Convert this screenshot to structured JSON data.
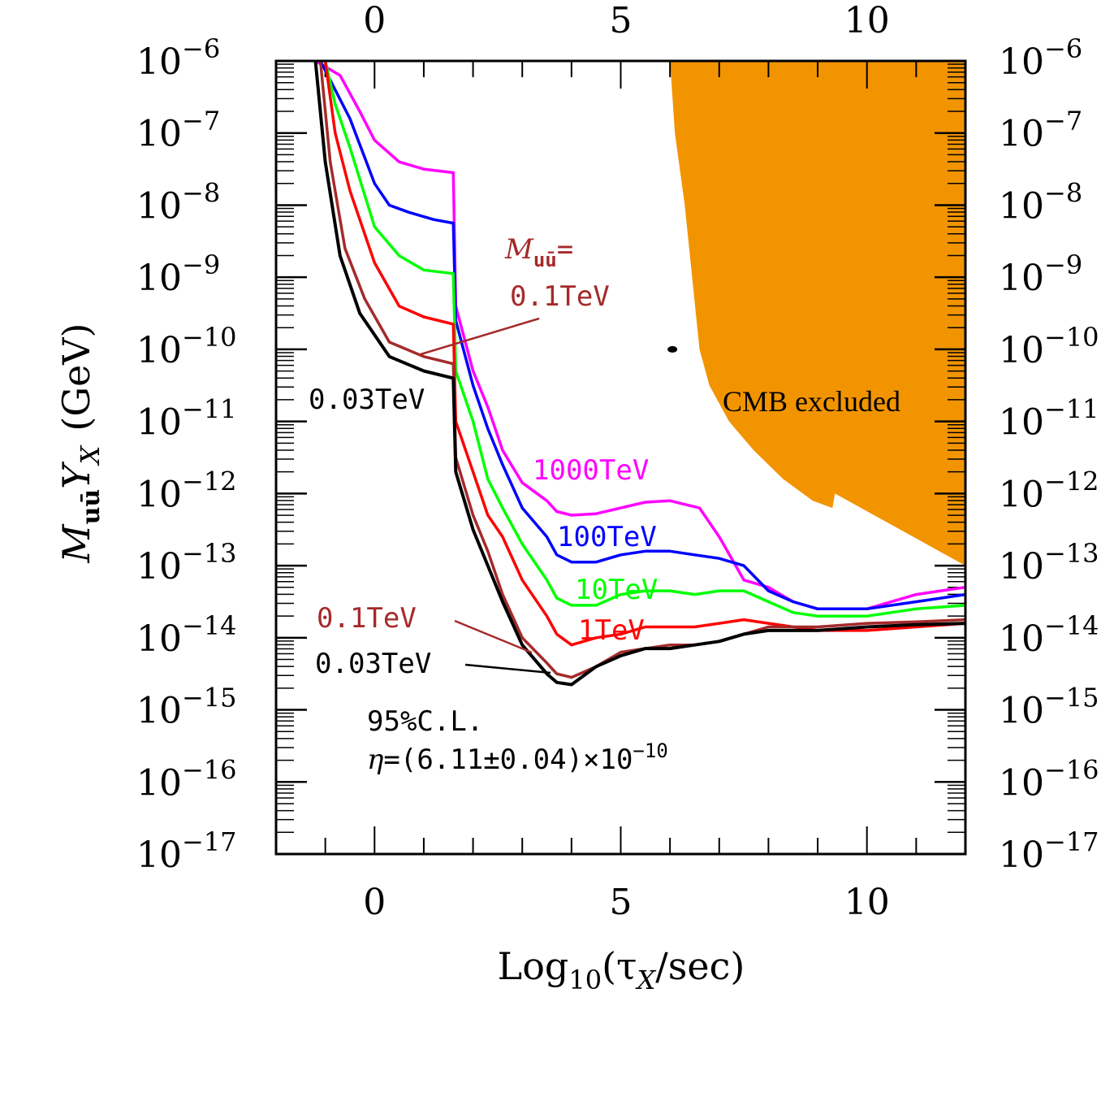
{
  "chart_data": {
    "type": "line",
    "xlabel": "Log10(τX/sec)",
    "xlabel_parts": {
      "pre": "Log",
      "sub": "10",
      "mid": "(τ",
      "mid_sub": "X",
      "post": "/sec)"
    },
    "ylabel": "M_uū Y_X (GeV)",
    "ylabel_parts": {
      "m": "M",
      "m_sub": "uū",
      "y": "Y",
      "y_sub": "X",
      "unit": "(GeV)"
    },
    "xlim": [
      -2,
      12
    ],
    "ylim_log10": [
      -17,
      -6
    ],
    "x_ticks": [
      {
        "v": 0,
        "label": "0"
      },
      {
        "v": 5,
        "label": "5"
      },
      {
        "v": 10,
        "label": "10"
      }
    ],
    "y_ticks": [
      {
        "v": -6,
        "base": "10",
        "exp": "−6"
      },
      {
        "v": -7,
        "base": "10",
        "exp": "−7"
      },
      {
        "v": -8,
        "base": "10",
        "exp": "−8"
      },
      {
        "v": -9,
        "base": "10",
        "exp": "−9"
      },
      {
        "v": -10,
        "base": "10",
        "exp": "−10"
      },
      {
        "v": -11,
        "base": "10",
        "exp": "−11"
      },
      {
        "v": -12,
        "base": "10",
        "exp": "−12"
      },
      {
        "v": -13,
        "base": "10",
        "exp": "−13"
      },
      {
        "v": -14,
        "base": "10",
        "exp": "−14"
      },
      {
        "v": -15,
        "base": "10",
        "exp": "−15"
      },
      {
        "v": -16,
        "base": "10",
        "exp": "−16"
      },
      {
        "v": -17,
        "base": "10",
        "exp": "−17"
      }
    ],
    "series": [
      {
        "name": "1000TeV",
        "color": "#ff00ff",
        "points": [
          [
            -1.2,
            -6
          ],
          [
            -0.7,
            -6.2
          ],
          [
            -0.3,
            -6.7
          ],
          [
            0,
            -7.1
          ],
          [
            0.5,
            -7.4
          ],
          [
            1,
            -7.5
          ],
          [
            1.6,
            -7.55
          ],
          [
            1.65,
            -9.4
          ],
          [
            2,
            -10.3
          ],
          [
            2.3,
            -10.8
          ],
          [
            2.6,
            -11.4
          ],
          [
            3,
            -11.85
          ],
          [
            3.5,
            -12.1
          ],
          [
            3.7,
            -12.25
          ],
          [
            4,
            -12.3
          ],
          [
            4.5,
            -12.28
          ],
          [
            5,
            -12.2
          ],
          [
            5.5,
            -12.12
          ],
          [
            6,
            -12.1
          ],
          [
            6.3,
            -12.15
          ],
          [
            6.6,
            -12.2
          ],
          [
            6.7,
            -12.3
          ],
          [
            7,
            -12.6
          ],
          [
            7.5,
            -13.2
          ],
          [
            8,
            -13.3
          ],
          [
            8.5,
            -13.5
          ],
          [
            9,
            -13.6
          ],
          [
            10,
            -13.6
          ],
          [
            11,
            -13.4
          ],
          [
            12,
            -13.3
          ]
        ]
      },
      {
        "name": "100TeV",
        "color": "#0000ff",
        "points": [
          [
            -1.1,
            -6
          ],
          [
            -0.8,
            -6.4
          ],
          [
            -0.5,
            -6.8
          ],
          [
            0,
            -7.7
          ],
          [
            0.3,
            -8
          ],
          [
            0.7,
            -8.1
          ],
          [
            1.2,
            -8.2
          ],
          [
            1.6,
            -8.25
          ],
          [
            1.65,
            -9.6
          ],
          [
            2,
            -10.5
          ],
          [
            2.3,
            -11.1
          ],
          [
            2.6,
            -11.6
          ],
          [
            3,
            -12.2
          ],
          [
            3.5,
            -12.6
          ],
          [
            3.7,
            -12.85
          ],
          [
            4,
            -12.95
          ],
          [
            4.5,
            -12.95
          ],
          [
            5,
            -12.85
          ],
          [
            5.5,
            -12.8
          ],
          [
            6,
            -12.8
          ],
          [
            6.5,
            -12.85
          ],
          [
            7,
            -12.9
          ],
          [
            7.5,
            -13
          ],
          [
            8,
            -13.35
          ],
          [
            8.5,
            -13.5
          ],
          [
            9,
            -13.6
          ],
          [
            10,
            -13.6
          ],
          [
            11,
            -13.5
          ],
          [
            12,
            -13.4
          ]
        ]
      },
      {
        "name": "10TeV",
        "color": "#00ff00",
        "points": [
          [
            -1,
            -6
          ],
          [
            -0.8,
            -6.6
          ],
          [
            -0.5,
            -7.2
          ],
          [
            0,
            -8.3
          ],
          [
            0.5,
            -8.7
          ],
          [
            1,
            -8.9
          ],
          [
            1.6,
            -8.95
          ],
          [
            1.65,
            -10.3
          ],
          [
            2,
            -11
          ],
          [
            2.3,
            -11.8
          ],
          [
            2.6,
            -12.2
          ],
          [
            3,
            -12.7
          ],
          [
            3.5,
            -13.2
          ],
          [
            3.7,
            -13.45
          ],
          [
            4,
            -13.55
          ],
          [
            4.5,
            -13.55
          ],
          [
            5,
            -13.4
          ],
          [
            5.5,
            -13.35
          ],
          [
            6,
            -13.35
          ],
          [
            6.5,
            -13.4
          ],
          [
            7,
            -13.35
          ],
          [
            7.5,
            -13.35
          ],
          [
            8,
            -13.5
          ],
          [
            8.5,
            -13.65
          ],
          [
            9,
            -13.7
          ],
          [
            10,
            -13.7
          ],
          [
            11,
            -13.6
          ],
          [
            12,
            -13.55
          ]
        ]
      },
      {
        "name": "1TeV",
        "color": "#ff0000",
        "points": [
          [
            -1,
            -6
          ],
          [
            -0.8,
            -7
          ],
          [
            -0.5,
            -7.8
          ],
          [
            0,
            -8.8
          ],
          [
            0.5,
            -9.4
          ],
          [
            1,
            -9.55
          ],
          [
            1.6,
            -9.65
          ],
          [
            1.65,
            -11
          ],
          [
            2,
            -11.7
          ],
          [
            2.3,
            -12.3
          ],
          [
            2.6,
            -12.6
          ],
          [
            3,
            -13.2
          ],
          [
            3.5,
            -13.7
          ],
          [
            3.7,
            -13.95
          ],
          [
            4,
            -14.1
          ],
          [
            4.5,
            -14
          ],
          [
            5,
            -13.95
          ],
          [
            5.5,
            -13.85
          ],
          [
            6,
            -13.85
          ],
          [
            6.5,
            -13.85
          ],
          [
            7,
            -13.8
          ],
          [
            7.5,
            -13.75
          ],
          [
            8,
            -13.8
          ],
          [
            8.5,
            -13.85
          ],
          [
            9,
            -13.9
          ],
          [
            10,
            -13.9
          ],
          [
            11,
            -13.85
          ],
          [
            12,
            -13.8
          ]
        ]
      },
      {
        "name": "0.1TeV",
        "color": "#a52a2a",
        "points": [
          [
            -1.1,
            -6
          ],
          [
            -0.9,
            -7.4
          ],
          [
            -0.6,
            -8.6
          ],
          [
            -0.2,
            -9.3
          ],
          [
            0.3,
            -9.9
          ],
          [
            1,
            -10.1
          ],
          [
            1.6,
            -10.2
          ],
          [
            1.65,
            -11.5
          ],
          [
            2,
            -12.3
          ],
          [
            2.3,
            -12.8
          ],
          [
            2.6,
            -13.4
          ],
          [
            3,
            -14
          ],
          [
            3.5,
            -14.35
          ],
          [
            3.7,
            -14.5
          ],
          [
            4,
            -14.55
          ],
          [
            4.5,
            -14.4
          ],
          [
            5,
            -14.2
          ],
          [
            5.5,
            -14.15
          ],
          [
            6,
            -14.1
          ],
          [
            6.5,
            -14.1
          ],
          [
            7,
            -14.05
          ],
          [
            7.5,
            -13.95
          ],
          [
            8,
            -13.85
          ],
          [
            9,
            -13.85
          ],
          [
            10,
            -13.8
          ],
          [
            11,
            -13.78
          ],
          [
            12,
            -13.75
          ]
        ]
      },
      {
        "name": "0.03TeV",
        "color": "#000000",
        "points": [
          [
            -1.2,
            -6
          ],
          [
            -1,
            -7.4
          ],
          [
            -0.7,
            -8.7
          ],
          [
            -0.3,
            -9.5
          ],
          [
            0.3,
            -10.1
          ],
          [
            1,
            -10.3
          ],
          [
            1.6,
            -10.4
          ],
          [
            1.65,
            -11.7
          ],
          [
            2,
            -12.5
          ],
          [
            2.3,
            -13
          ],
          [
            2.6,
            -13.5
          ],
          [
            3,
            -14.1
          ],
          [
            3.5,
            -14.5
          ],
          [
            3.7,
            -14.62
          ],
          [
            4,
            -14.65
          ],
          [
            4.5,
            -14.4
          ],
          [
            5,
            -14.25
          ],
          [
            5.5,
            -14.15
          ],
          [
            6,
            -14.15
          ],
          [
            6.5,
            -14.1
          ],
          [
            7,
            -14.05
          ],
          [
            7.5,
            -13.95
          ],
          [
            8,
            -13.9
          ],
          [
            9,
            -13.9
          ],
          [
            10,
            -13.85
          ],
          [
            11,
            -13.82
          ],
          [
            12,
            -13.8
          ]
        ]
      }
    ],
    "excluded_region": {
      "label": "CMB excluded",
      "color": "#f29400",
      "boundary": [
        [
          6,
          -6
        ],
        [
          6.1,
          -7
        ],
        [
          6.3,
          -8
        ],
        [
          6.45,
          -9
        ],
        [
          6.6,
          -10
        ],
        [
          6.8,
          -10.5
        ],
        [
          7.2,
          -11
        ],
        [
          7.7,
          -11.4
        ],
        [
          8.3,
          -11.8
        ],
        [
          8.9,
          -12.1
        ],
        [
          9.3,
          -12.2
        ],
        [
          9.35,
          -12
        ],
        [
          12,
          -13
        ]
      ]
    },
    "annotations": {
      "mass_label_line1": "M",
      "mass_label_sub": "uū",
      "mass_label_eq": "=",
      "mass_label_line2": "0.1TeV",
      "label_003_top": "0.03TeV",
      "label_1000": "1000TeV",
      "label_100": "100TeV",
      "label_10": "10TeV",
      "label_1": "1TeV",
      "label_01_bottom": "0.1TeV",
      "label_003_bottom": "0.03TeV",
      "cl": "95%C.L.",
      "eta_sym": "η",
      "eta_text": "=(6.11±0.04)×10",
      "eta_exp": "−10"
    }
  }
}
